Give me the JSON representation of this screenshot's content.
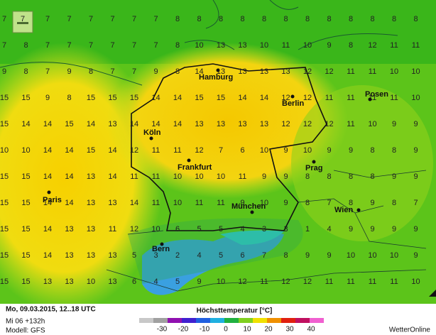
{
  "grid": {
    "rows": [
      [
        7,
        7,
        7,
        7,
        7,
        7,
        7,
        7,
        8,
        8,
        8,
        8,
        8,
        8,
        8,
        8,
        8,
        8,
        8,
        8
      ],
      [
        7,
        8,
        7,
        7,
        7,
        7,
        7,
        7,
        8,
        10,
        13,
        13,
        10,
        11,
        10,
        9,
        8,
        12,
        11,
        11
      ],
      [
        9,
        8,
        7,
        9,
        8,
        7,
        7,
        9,
        8,
        14,
        13,
        13,
        13,
        13,
        12,
        12,
        11,
        11,
        10,
        10
      ],
      [
        15,
        15,
        9,
        8,
        15,
        15,
        15,
        14,
        14,
        15,
        15,
        14,
        14,
        12,
        12,
        11,
        11,
        11,
        11,
        10
      ],
      [
        15,
        14,
        14,
        15,
        14,
        13,
        14,
        14,
        14,
        13,
        13,
        13,
        13,
        12,
        12,
        12,
        11,
        10,
        9,
        9
      ],
      [
        10,
        10,
        14,
        14,
        15,
        14,
        12,
        11,
        11,
        12,
        7,
        6,
        10,
        9,
        10,
        9,
        9,
        8,
        8,
        9
      ],
      [
        15,
        15,
        14,
        14,
        13,
        14,
        11,
        11,
        10,
        10,
        10,
        11,
        9,
        9,
        8,
        8,
        8,
        8,
        9,
        9
      ],
      [
        15,
        15,
        14,
        14,
        13,
        13,
        14,
        11,
        10,
        11,
        11,
        9,
        10,
        9,
        8,
        7,
        8,
        9,
        8,
        7
      ],
      [
        15,
        15,
        14,
        13,
        13,
        11,
        12,
        10,
        6,
        5,
        5,
        4,
        3,
        3,
        1,
        4,
        9,
        9,
        9,
        9
      ],
      [
        15,
        15,
        14,
        13,
        13,
        13,
        5,
        3,
        2,
        4,
        5,
        6,
        7,
        8,
        9,
        9,
        10,
        10,
        10,
        9
      ],
      [
        15,
        15,
        13,
        13,
        10,
        13,
        6,
        4,
        5,
        9,
        10,
        12,
        11,
        12,
        12,
        11,
        11,
        11,
        11,
        10
      ]
    ]
  },
  "cities": [
    {
      "name": "Hamburg"
    },
    {
      "name": "Berlin"
    },
    {
      "name": "Posen"
    },
    {
      "name": "Köln"
    },
    {
      "name": "Frankfurt"
    },
    {
      "name": "Prag"
    },
    {
      "name": "Paris"
    },
    {
      "name": "München"
    },
    {
      "name": "Wien"
    },
    {
      "name": "Bern"
    }
  ],
  "footer": {
    "date": "Mo, 09.03.2015, 12..18 UTC",
    "run": "Mi 06 +132h",
    "model": "Modell: GFS",
    "legend_title": "Höchsttemperatur [°C]",
    "scale": [
      -30,
      -20,
      -10,
      0,
      10,
      20,
      30,
      40
    ],
    "brand": "WetterOnline"
  }
}
